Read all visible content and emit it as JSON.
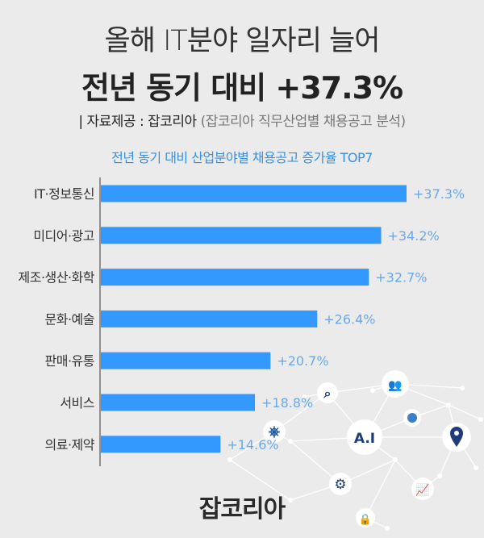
{
  "header": {
    "title_line1": "올해 IT분야 일자리 늘어",
    "title_line2": "전년 동기 대비 +37.3%",
    "source_label": "| 자료제공 : 잡코리아",
    "source_detail": "(잡코리아 직무산업별 채용공고 분석)"
  },
  "logo": "잡코리아",
  "decoration": {
    "icons": [
      "search-icon",
      "users-icon",
      "pie-chart-icon",
      "ai-badge-icon",
      "location-pin-icon",
      "gear-icon",
      "growth-chart-icon",
      "lock-icon",
      "compass-icon"
    ],
    "ai_text": "A.I"
  },
  "colors": {
    "bar": "#3399ff",
    "label": "#6aa8e8",
    "title": "#3a8fe0",
    "background": "#ebebeb"
  },
  "chart_data": {
    "type": "bar",
    "orientation": "horizontal",
    "title": "전년 동기 대비 산업분야별 채용공고 증가율 TOP7",
    "categories": [
      "IT·정보통신",
      "미디어·광고",
      "제조·생산·화학",
      "문화·예술",
      "판매·유통",
      "서비스",
      "의료·제약"
    ],
    "values": [
      37.3,
      34.2,
      32.7,
      26.4,
      20.7,
      18.8,
      14.6
    ],
    "data_labels": [
      "+37.3%",
      "+34.2%",
      "+32.7%",
      "+26.4%",
      "+20.7%",
      "+18.8%",
      "+14.6%"
    ],
    "xlim": [
      0,
      46
    ],
    "grid": false
  }
}
